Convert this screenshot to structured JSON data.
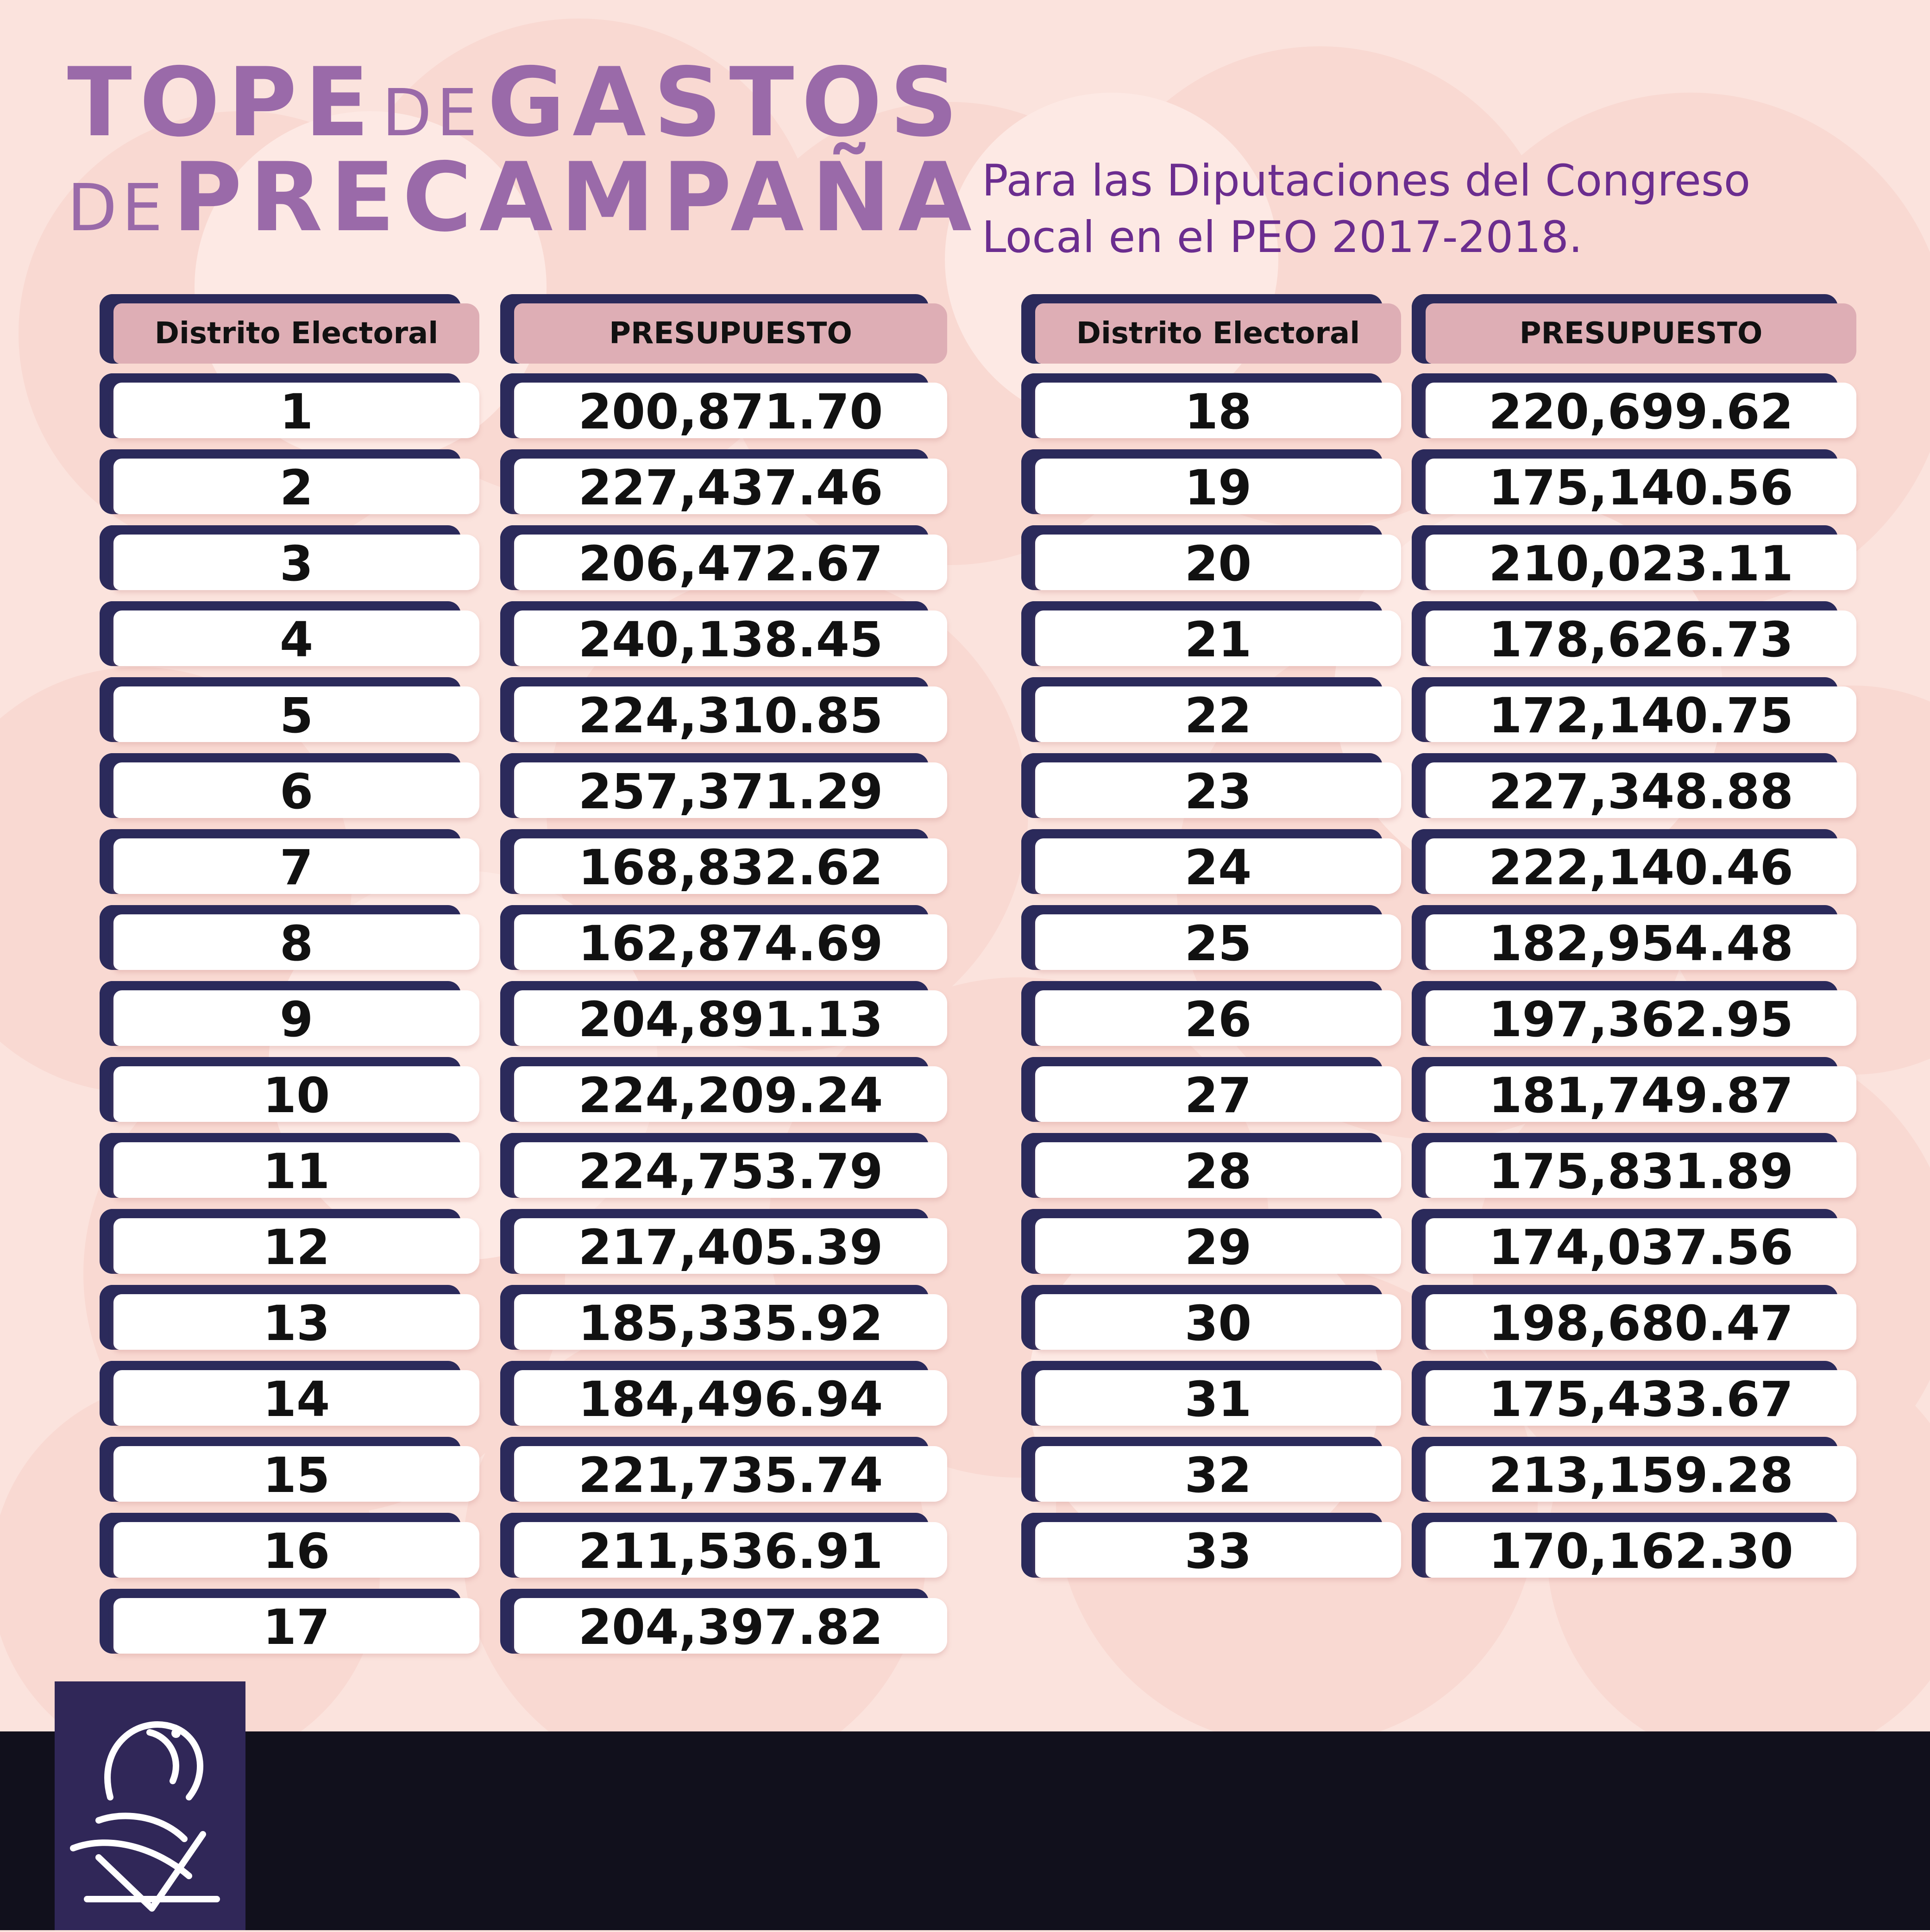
{
  "title": {
    "word1": "TOPE",
    "word2": "DE",
    "word3": "GASTOS",
    "word4": "DE",
    "word5": "PRECAMPAÑA"
  },
  "subtitle": {
    "line1": "Para las Diputaciones del Congreso",
    "line2": "Local en el PEO 2017-2018."
  },
  "table": {
    "header_district": "Distrito Electoral",
    "header_budget": "PRESUPUESTO",
    "left_rows": [
      {
        "district": "1",
        "budget": "200,871.70"
      },
      {
        "district": "2",
        "budget": "227,437.46"
      },
      {
        "district": "3",
        "budget": "206,472.67"
      },
      {
        "district": "4",
        "budget": "240,138.45"
      },
      {
        "district": "5",
        "budget": "224,310.85"
      },
      {
        "district": "6",
        "budget": "257,371.29"
      },
      {
        "district": "7",
        "budget": "168,832.62"
      },
      {
        "district": "8",
        "budget": "162,874.69"
      },
      {
        "district": "9",
        "budget": "204,891.13"
      },
      {
        "district": "10",
        "budget": "224,209.24"
      },
      {
        "district": "11",
        "budget": "224,753.79"
      },
      {
        "district": "12",
        "budget": "217,405.39"
      },
      {
        "district": "13",
        "budget": "185,335.92"
      },
      {
        "district": "14",
        "budget": "184,496.94"
      },
      {
        "district": "15",
        "budget": "221,735.74"
      },
      {
        "district": "16",
        "budget": "211,536.91"
      },
      {
        "district": "17",
        "budget": "204,397.82"
      }
    ],
    "right_rows": [
      {
        "district": "18",
        "budget": "220,699.62"
      },
      {
        "district": "19",
        "budget": "175,140.56"
      },
      {
        "district": "20",
        "budget": "210,023.11"
      },
      {
        "district": "21",
        "budget": "178,626.73"
      },
      {
        "district": "22",
        "budget": "172,140.75"
      },
      {
        "district": "23",
        "budget": "227,348.88"
      },
      {
        "district": "24",
        "budget": "222,140.46"
      },
      {
        "district": "25",
        "budget": "182,954.48"
      },
      {
        "district": "26",
        "budget": "197,362.95"
      },
      {
        "district": "27",
        "budget": "181,749.87"
      },
      {
        "district": "28",
        "budget": "175,831.89"
      },
      {
        "district": "29",
        "budget": "174,037.56"
      },
      {
        "district": "30",
        "budget": "198,680.47"
      },
      {
        "district": "31",
        "budget": "175,433.67"
      },
      {
        "district": "32",
        "budget": "213,159.28"
      },
      {
        "district": "33",
        "budget": "170,162.30"
      }
    ]
  },
  "colors": {
    "background": "#fbe3dd",
    "title": "#9a6aa9",
    "subtitle": "#6b2d8f",
    "cell_frame": "#2b2a5b",
    "header_fill": "#deaeb5",
    "footer": "#11101c",
    "logo_box": "#302758"
  },
  "logo": {
    "icon": "stylized-bird-logo-icon"
  }
}
